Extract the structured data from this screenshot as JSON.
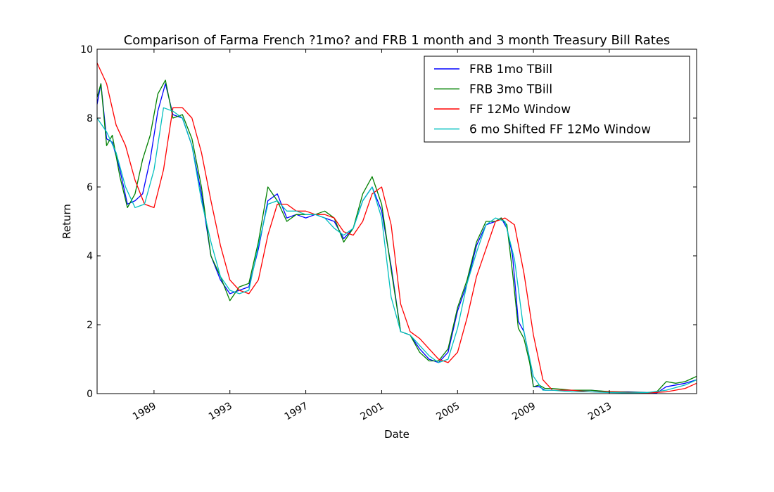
{
  "chart_data": {
    "type": "line",
    "title": "Comparison of Farma French ?1mo? and FRB 1 month and 3 month Treasury Bill Rates",
    "xlabel": "Date",
    "ylabel": "Return",
    "xlim": [
      1986.0,
      2017.6
    ],
    "ylim": [
      0,
      10
    ],
    "x_ticks": [
      "1989",
      "1993",
      "1997",
      "2001",
      "2005",
      "2009",
      "2013"
    ],
    "y_ticks": [
      "0",
      "2",
      "4",
      "6",
      "8",
      "10"
    ],
    "legend_position": "top-right",
    "grid": false,
    "series": [
      {
        "name": "FRB 1mo TBill",
        "color": "#0000ff",
        "x": [
          1986.0,
          1986.2,
          1986.5,
          1986.8,
          1987.2,
          1987.6,
          1988.0,
          1988.4,
          1988.8,
          1989.2,
          1989.6,
          1990.0,
          1990.5,
          1991.0,
          1991.5,
          1992.0,
          1992.5,
          1993.0,
          1993.5,
          1994.0,
          1994.5,
          1995.0,
          1995.5,
          1996.0,
          1996.5,
          1997.0,
          1997.5,
          1998.0,
          1998.5,
          1999.0,
          1999.5,
          2000.0,
          2000.5,
          2001.0,
          2001.5,
          2002.0,
          2002.5,
          2003.0,
          2003.5,
          2004.0,
          2004.5,
          2005.0,
          2005.5,
          2006.0,
          2006.5,
          2007.0,
          2007.3,
          2007.6,
          2007.9,
          2008.2,
          2008.5,
          2008.8,
          2009.0,
          2009.3,
          2009.6,
          2010.0,
          2011.0,
          2012.0,
          2013.0,
          2014.0,
          2015.0,
          2015.5,
          2016.0,
          2016.5,
          2017.0,
          2017.6
        ],
        "values": [
          8.4,
          9.0,
          7.4,
          7.3,
          6.5,
          5.5,
          5.6,
          5.8,
          6.8,
          8.2,
          9.0,
          8.1,
          8.0,
          7.2,
          5.8,
          4.0,
          3.3,
          2.9,
          3.0,
          3.1,
          4.2,
          5.6,
          5.8,
          5.1,
          5.2,
          5.1,
          5.2,
          5.1,
          5.0,
          4.5,
          4.8,
          5.6,
          6.0,
          5.3,
          3.7,
          1.8,
          1.7,
          1.3,
          1.0,
          0.9,
          1.2,
          2.4,
          3.2,
          4.3,
          4.9,
          5.0,
          5.1,
          4.8,
          4.0,
          2.1,
          1.8,
          1.0,
          0.2,
          0.2,
          0.1,
          0.1,
          0.1,
          0.1,
          0.05,
          0.05,
          0.03,
          0.02,
          0.2,
          0.25,
          0.3,
          0.4
        ]
      },
      {
        "name": "FRB 3mo TBill",
        "color": "#008000",
        "x": [
          1986.0,
          1986.2,
          1986.5,
          1986.8,
          1987.2,
          1987.6,
          1988.0,
          1988.4,
          1988.8,
          1989.2,
          1989.6,
          1990.0,
          1990.5,
          1991.0,
          1991.5,
          1992.0,
          1992.5,
          1993.0,
          1993.5,
          1994.0,
          1994.5,
          1995.0,
          1995.5,
          1996.0,
          1996.5,
          1997.0,
          1997.5,
          1998.0,
          1998.5,
          1999.0,
          1999.5,
          2000.0,
          2000.5,
          2001.0,
          2001.5,
          2002.0,
          2002.5,
          2003.0,
          2003.5,
          2004.0,
          2004.5,
          2005.0,
          2005.5,
          2006.0,
          2006.5,
          2007.0,
          2007.3,
          2007.6,
          2007.9,
          2008.2,
          2008.5,
          2008.8,
          2009.0,
          2009.3,
          2009.6,
          2010.0,
          2011.0,
          2012.0,
          2013.0,
          2014.0,
          2015.0,
          2015.5,
          2016.0,
          2016.5,
          2017.0,
          2017.6
        ],
        "values": [
          8.6,
          9.0,
          7.2,
          7.5,
          6.3,
          5.4,
          5.8,
          6.8,
          7.5,
          8.7,
          9.1,
          8.0,
          8.1,
          7.4,
          6.0,
          4.0,
          3.4,
          2.7,
          3.1,
          3.2,
          4.4,
          6.0,
          5.6,
          5.0,
          5.2,
          5.2,
          5.2,
          5.3,
          5.1,
          4.4,
          4.8,
          5.8,
          6.3,
          5.5,
          3.6,
          1.8,
          1.7,
          1.2,
          0.95,
          0.95,
          1.3,
          2.5,
          3.3,
          4.4,
          5.0,
          5.0,
          5.1,
          4.9,
          3.5,
          1.9,
          1.6,
          0.9,
          0.2,
          0.25,
          0.15,
          0.15,
          0.1,
          0.1,
          0.06,
          0.04,
          0.03,
          0.05,
          0.35,
          0.3,
          0.35,
          0.5
        ]
      },
      {
        "name": "FF 12Mo Window",
        "color": "#ff0000",
        "x": [
          1986.0,
          1986.5,
          1987.0,
          1987.5,
          1988.0,
          1988.5,
          1989.0,
          1989.5,
          1990.0,
          1990.5,
          1991.0,
          1991.5,
          1992.0,
          1992.5,
          1993.0,
          1993.5,
          1994.0,
          1994.5,
          1995.0,
          1995.5,
          1996.0,
          1996.5,
          1997.0,
          1997.5,
          1998.0,
          1998.5,
          1999.0,
          1999.5,
          2000.0,
          2000.5,
          2001.0,
          2001.5,
          2002.0,
          2002.5,
          2003.0,
          2003.5,
          2004.0,
          2004.5,
          2005.0,
          2005.5,
          2006.0,
          2006.5,
          2007.0,
          2007.5,
          2008.0,
          2008.5,
          2009.0,
          2009.5,
          2010.0,
          2011.0,
          2012.0,
          2013.0,
          2014.0,
          2015.0,
          2016.0,
          2017.0,
          2017.6
        ],
        "values": [
          9.6,
          9.0,
          7.8,
          7.2,
          6.2,
          5.5,
          5.4,
          6.5,
          8.3,
          8.3,
          8.0,
          7.0,
          5.6,
          4.3,
          3.3,
          3.0,
          2.9,
          3.3,
          4.6,
          5.5,
          5.5,
          5.3,
          5.3,
          5.2,
          5.2,
          5.1,
          4.7,
          4.6,
          5.0,
          5.8,
          6.0,
          4.9,
          2.6,
          1.8,
          1.6,
          1.3,
          1.0,
          0.9,
          1.2,
          2.2,
          3.4,
          4.2,
          5.0,
          5.1,
          4.9,
          3.5,
          1.7,
          0.4,
          0.1,
          0.1,
          0.05,
          0.05,
          0.03,
          0.02,
          0.05,
          0.15,
          0.3
        ]
      },
      {
        "name": "6 mo Shifted FF 12Mo Window",
        "color": "#00bfbf",
        "x": [
          1986.0,
          1986.5,
          1987.0,
          1987.5,
          1988.0,
          1988.5,
          1989.0,
          1989.5,
          1990.0,
          1990.5,
          1991.0,
          1991.5,
          1992.0,
          1992.5,
          1993.0,
          1993.5,
          1994.0,
          1994.5,
          1995.0,
          1995.5,
          1996.0,
          1996.5,
          1997.0,
          1997.5,
          1998.0,
          1998.5,
          1999.0,
          1999.5,
          2000.0,
          2000.5,
          2001.0,
          2001.5,
          2002.0,
          2002.5,
          2003.0,
          2003.5,
          2004.0,
          2004.5,
          2005.0,
          2005.5,
          2006.0,
          2006.5,
          2007.0,
          2007.5,
          2008.0,
          2008.5,
          2009.0,
          2009.5,
          2010.0,
          2011.0,
          2012.0,
          2013.0,
          2014.0,
          2015.0,
          2016.0,
          2017.0,
          2017.6
        ],
        "values": [
          8.0,
          7.6,
          7.0,
          6.0,
          5.4,
          5.5,
          6.5,
          8.3,
          8.2,
          8.0,
          7.2,
          5.6,
          4.4,
          3.4,
          3.0,
          2.9,
          3.0,
          4.3,
          5.5,
          5.6,
          5.3,
          5.3,
          5.2,
          5.2,
          5.1,
          4.8,
          4.6,
          4.8,
          5.6,
          6.0,
          5.1,
          2.8,
          1.8,
          1.7,
          1.4,
          1.1,
          0.9,
          1.0,
          1.9,
          3.2,
          4.1,
          4.9,
          5.1,
          5.0,
          3.9,
          1.8,
          0.5,
          0.1,
          0.1,
          0.05,
          0.05,
          0.03,
          0.02,
          0.03,
          0.1,
          0.25,
          0.4
        ]
      }
    ]
  }
}
